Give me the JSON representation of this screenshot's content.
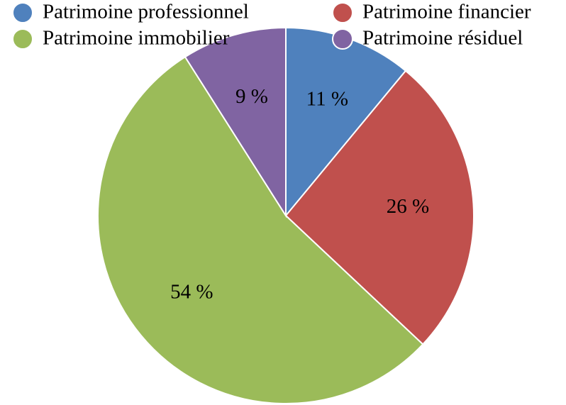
{
  "chart_data": {
    "type": "pie",
    "categories": [
      "Patrimoine professionnel",
      "Patrimoine financier",
      "Patrimoine immobilier",
      "Patrimoine résiduel"
    ],
    "values": [
      11,
      26,
      54,
      9
    ],
    "value_labels": [
      "11 %",
      "26 %",
      "54 %",
      "9 %"
    ],
    "colors": [
      "#4f81bd",
      "#c0504d",
      "#9bbb59",
      "#8064a2"
    ],
    "legend": "top"
  }
}
